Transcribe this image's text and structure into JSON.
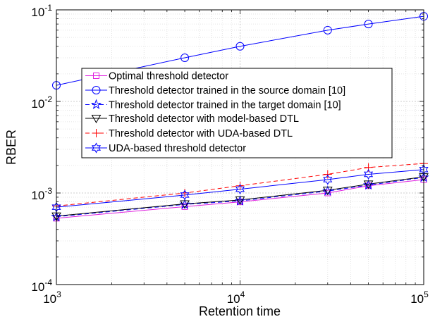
{
  "chart_data": {
    "type": "line",
    "xlabel": "Retention time",
    "ylabel": "RBER",
    "x_scale": "log",
    "y_scale": "log",
    "xlim": [
      1000,
      100000
    ],
    "ylim": [
      0.0001,
      0.1
    ],
    "grid": true,
    "legend_placement": "center-left",
    "x_ticks": [
      {
        "base": "10",
        "exp": "3",
        "value": 1000
      },
      {
        "base": "10",
        "exp": "4",
        "value": 10000
      },
      {
        "base": "10",
        "exp": "5",
        "value": 100000
      }
    ],
    "y_ticks": [
      {
        "base": "10",
        "exp": "-4",
        "value": 0.0001
      },
      {
        "base": "10",
        "exp": "-3",
        "value": 0.001
      },
      {
        "base": "10",
        "exp": "-2",
        "value": 0.01
      },
      {
        "base": "10",
        "exp": "-1",
        "value": 0.1
      }
    ],
    "x": [
      1000,
      5000,
      10000,
      30000,
      50000,
      100000
    ],
    "series": [
      {
        "name": "Optimal threshold detector",
        "color": "#e020e0",
        "dash": "solid",
        "marker": "square",
        "values": [
          0.00053,
          0.00071,
          0.0008,
          0.001,
          0.0012,
          0.0014
        ]
      },
      {
        "name": "Threshold detector trained in the source domain [10]",
        "color": "#0000ff",
        "dash": "solid",
        "marker": "circle",
        "values": [
          0.015,
          0.03,
          0.04,
          0.06,
          0.07,
          0.085
        ]
      },
      {
        "name": "Threshold detector trained in the target domain [10]",
        "color": "#0000ff",
        "dash": "dashed",
        "marker": "star5",
        "values": [
          0.00055,
          0.00075,
          0.00082,
          0.00105,
          0.00122,
          0.00148
        ]
      },
      {
        "name": "Threshold detector with model-based DTL",
        "color": "#000000",
        "dash": "solid",
        "marker": "triangle-down",
        "values": [
          0.00056,
          0.00076,
          0.00084,
          0.00107,
          0.00125,
          0.0015
        ]
      },
      {
        "name": "Threshold detector with UDA-based DTL",
        "color": "#ff0000",
        "dash": "dashed",
        "marker": "plus",
        "values": [
          0.00072,
          0.001,
          0.0012,
          0.0016,
          0.0019,
          0.0021
        ]
      },
      {
        "name": "UDA-based threshold detector",
        "color": "#0000ff",
        "dash": "solid",
        "marker": "star6",
        "values": [
          0.0007,
          0.00095,
          0.0011,
          0.0014,
          0.0016,
          0.0018
        ]
      }
    ]
  }
}
